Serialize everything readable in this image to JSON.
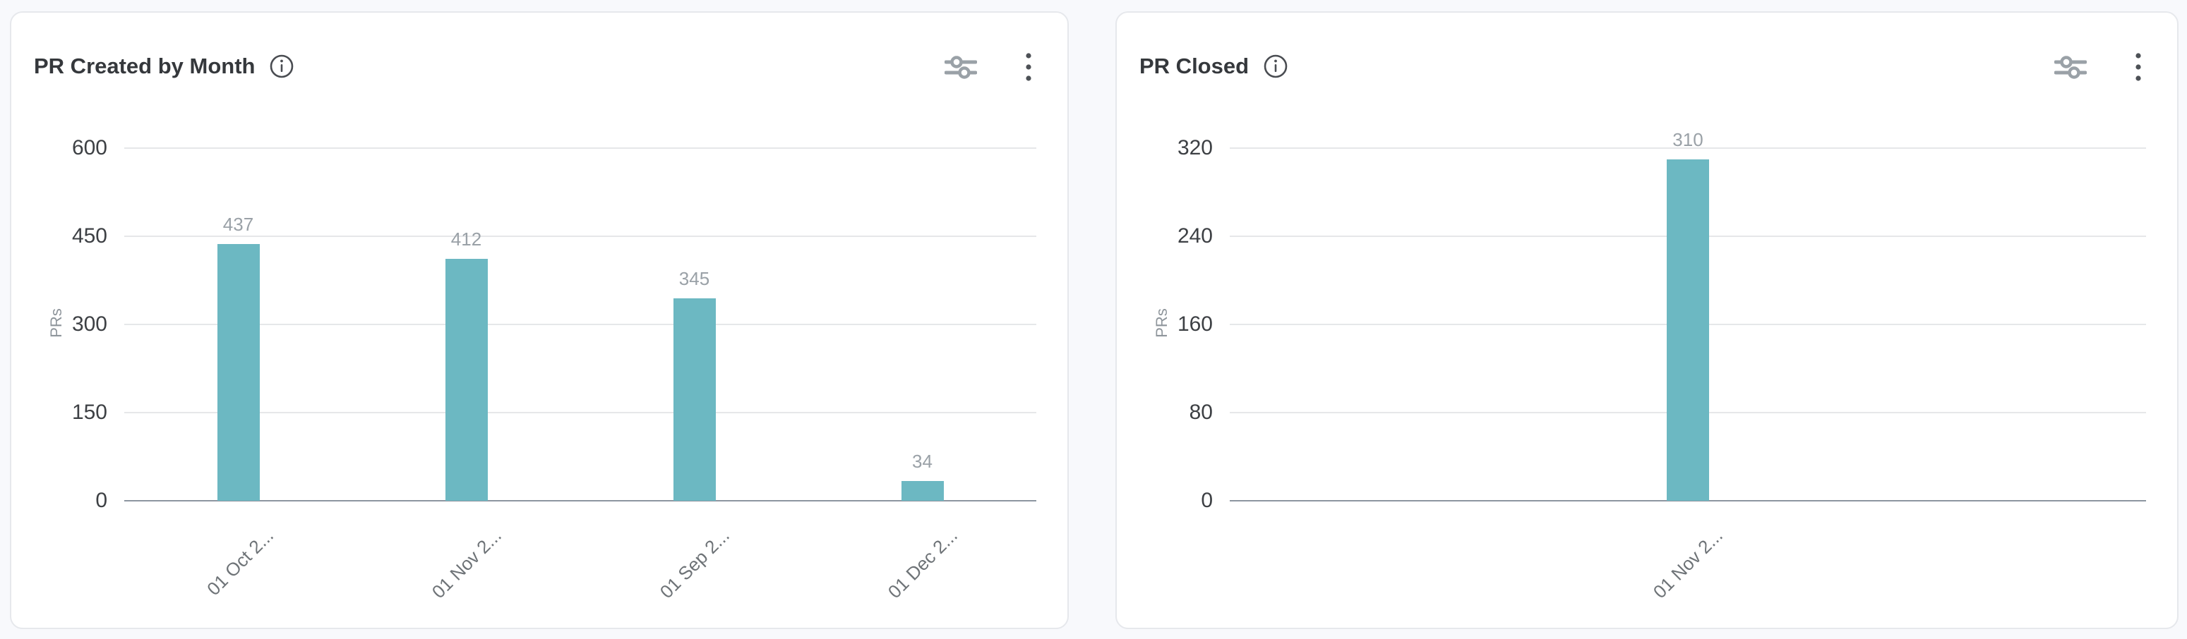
{
  "page": {
    "background": "#f8f9fc"
  },
  "colors": {
    "bar": "#6cb8c2",
    "gridline": "#e6e7e9",
    "axis_line": "#8c95a0",
    "title_text": "#35383c",
    "tick_text": "#3d4044",
    "value_label_text": "#9aa1a7",
    "x_label_text": "#6e7377",
    "card_border": "#e6e8ec"
  },
  "cards": [
    {
      "title": "PR Created by Month",
      "info_icon": "info-circle-icon",
      "controls": [
        "filter-sliders-icon",
        "kebab-menu-icon"
      ]
    },
    {
      "title": "PR Closed",
      "info_icon": "info-circle-icon",
      "controls": [
        "filter-sliders-icon",
        "kebab-menu-icon"
      ]
    }
  ],
  "chart_data": [
    {
      "type": "bar",
      "title": "PR Created by Month",
      "categories": [
        "01 Oct 2...",
        "01 Nov 2...",
        "01 Sep 2...",
        "01 Dec 2..."
      ],
      "values": [
        437,
        412,
        345,
        34
      ],
      "data_labels": [
        "437",
        "412",
        "345",
        "34"
      ],
      "xlabel": "",
      "ylabel": "PRs",
      "ylim": [
        0,
        600
      ],
      "yticks": [
        0,
        150,
        300,
        450,
        600
      ],
      "grid": true,
      "legend": "none",
      "bar_color": "#6cb8c2"
    },
    {
      "type": "bar",
      "title": "PR Closed",
      "categories": [
        "01 Nov 2..."
      ],
      "values": [
        310
      ],
      "data_labels": [
        "310"
      ],
      "xlabel": "",
      "ylabel": "PRs",
      "ylim": [
        0,
        320
      ],
      "yticks": [
        0,
        80,
        160,
        240,
        320
      ],
      "grid": true,
      "legend": "none",
      "bar_color": "#6cb8c2"
    }
  ]
}
